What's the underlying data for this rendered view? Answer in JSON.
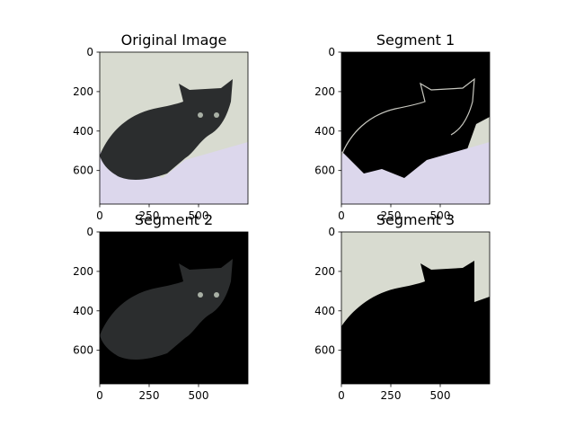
{
  "panels": [
    {
      "title": "Original Image",
      "xticks": [
        "0",
        "250",
        "500"
      ],
      "yticks": [
        "0",
        "200",
        "400",
        "600"
      ],
      "content": "original"
    },
    {
      "title": "Segment 1",
      "xticks": [
        "0",
        "250",
        "500"
      ],
      "yticks": [
        "0",
        "200",
        "400",
        "600"
      ],
      "content": "segment-blanket"
    },
    {
      "title": "Segment 2",
      "xticks": [
        "0",
        "250",
        "500"
      ],
      "yticks": [
        "0",
        "200",
        "400",
        "600"
      ],
      "content": "segment-cat"
    },
    {
      "title": "Segment 3",
      "xticks": [
        "0",
        "250",
        "500"
      ],
      "yticks": [
        "0",
        "200",
        "400",
        "600"
      ],
      "content": "segment-wall"
    }
  ],
  "colors": {
    "wall": "#d8dbd0",
    "blanket": "#dcd7ec",
    "cat": "#2b2d2e",
    "eyes": "#a9b0a5",
    "background_masked": "#000000"
  }
}
